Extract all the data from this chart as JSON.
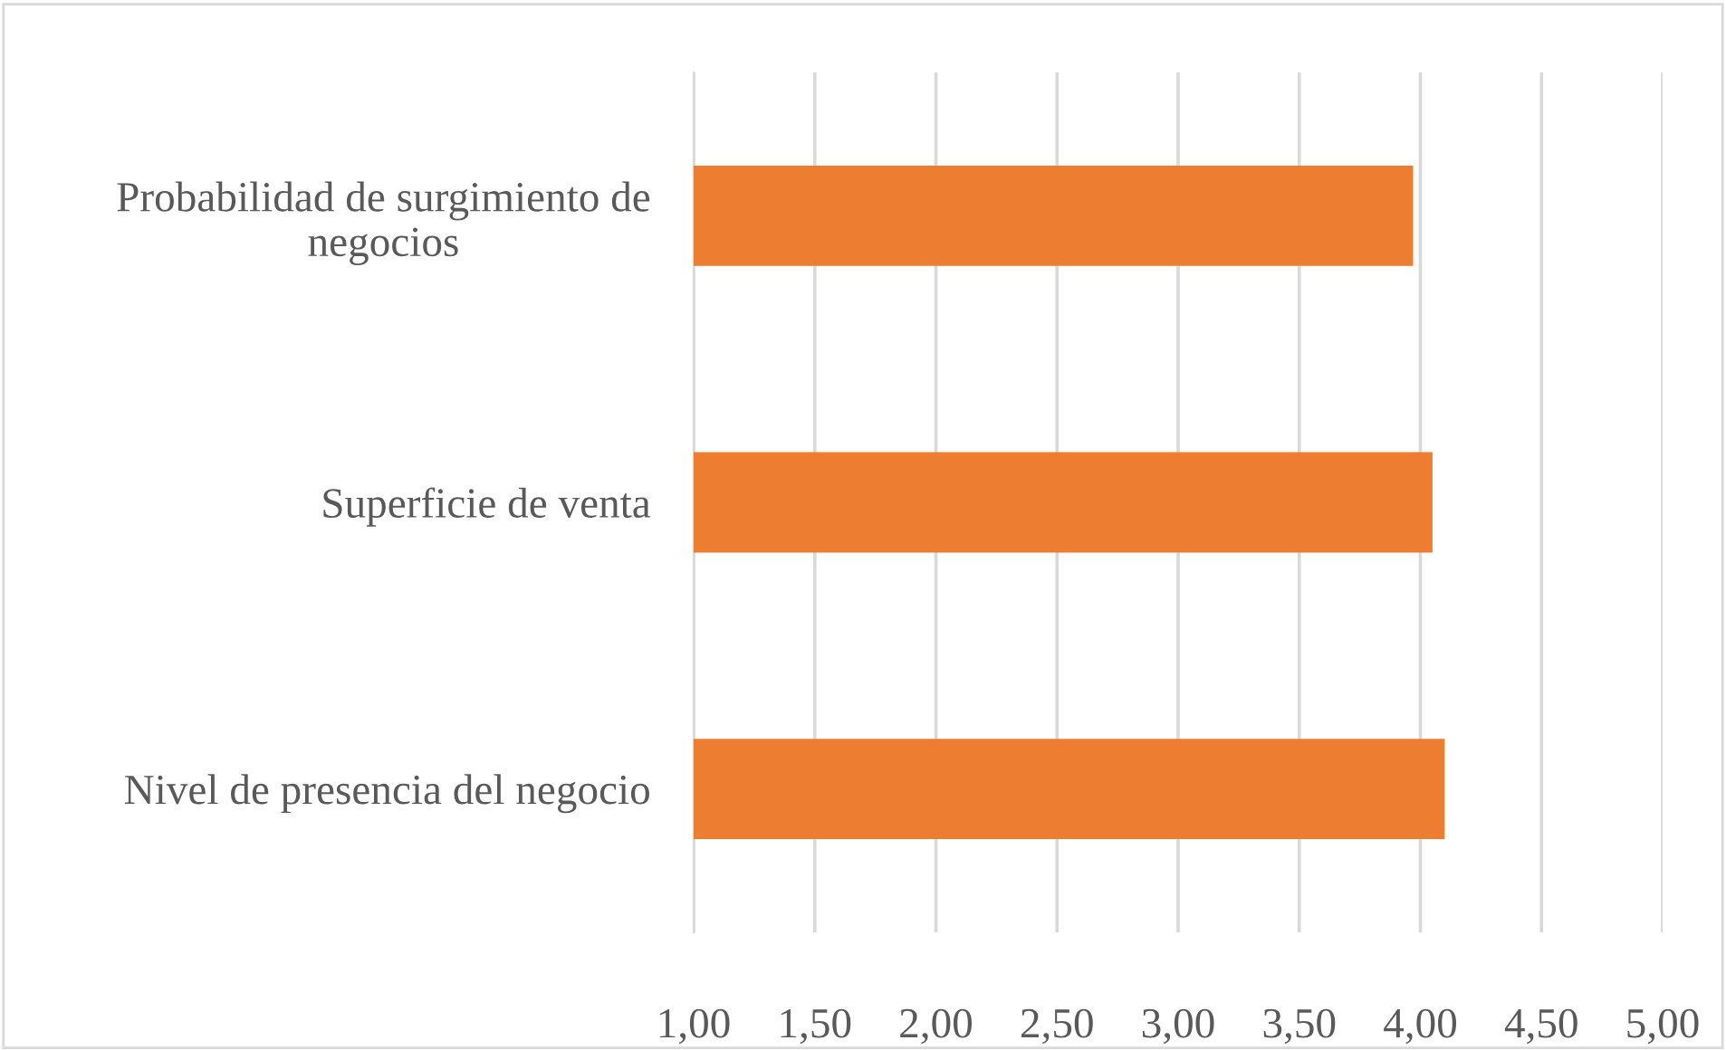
{
  "chart_data": {
    "type": "bar",
    "orientation": "horizontal",
    "categories": [
      "Probabilidad de surgimiento de negocios",
      "Superficie de venta",
      "Nivel de presencia del negocio"
    ],
    "values": [
      3.97,
      4.05,
      4.1
    ],
    "color": "#ed7d31",
    "xlim": [
      1,
      5
    ],
    "xticks": [
      {
        "value": 1,
        "label": "1,00"
      },
      {
        "value": 1.5,
        "label": "1,50"
      },
      {
        "value": 2,
        "label": "2,00"
      },
      {
        "value": 2.5,
        "label": "2,50"
      },
      {
        "value": 3,
        "label": "3,00"
      },
      {
        "value": 3.5,
        "label": "3,50"
      },
      {
        "value": 4,
        "label": "4,00"
      },
      {
        "value": 4.5,
        "label": "4,50"
      },
      {
        "value": 5,
        "label": "5,00"
      }
    ],
    "grid": "x",
    "legend": false
  }
}
